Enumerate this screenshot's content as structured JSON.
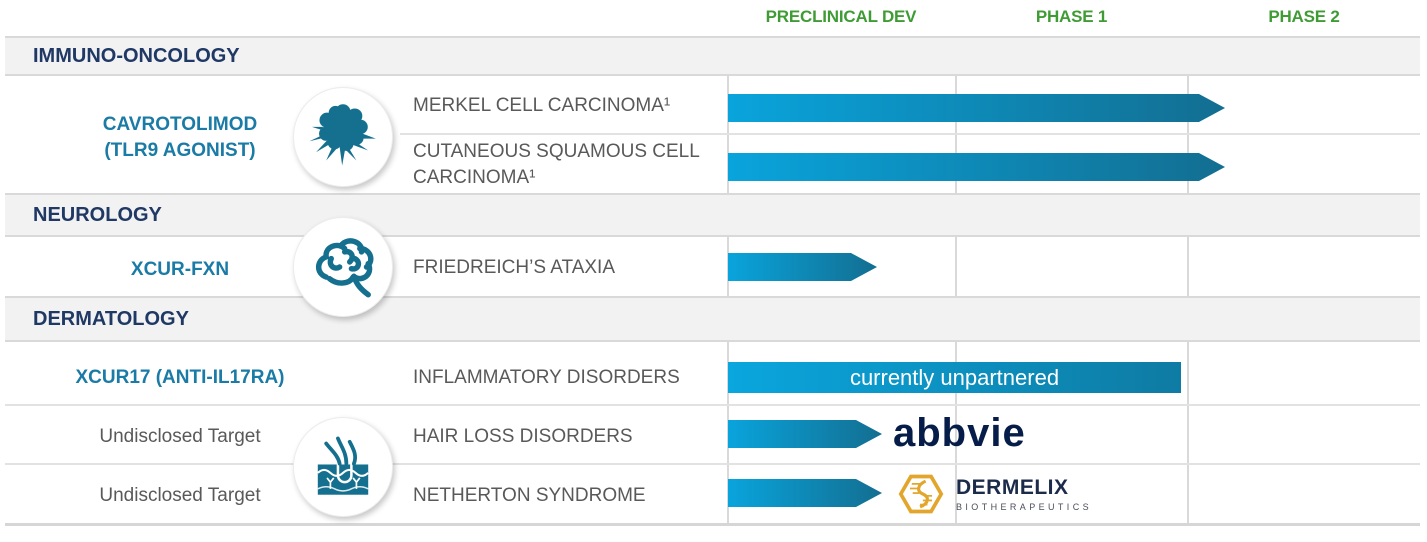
{
  "header": {
    "columns": [
      "PRECLINICAL DEV",
      "PHASE 1",
      "PHASE 2"
    ]
  },
  "sections": [
    {
      "title": "IMMUNO-ONCOLOGY"
    },
    {
      "title": "NEUROLOGY"
    },
    {
      "title": "DERMATOLOGY"
    }
  ],
  "programs": [
    {
      "name": "CAVROTOLIMOD",
      "name2": "(TLR9 AGONIST)",
      "icon": "tumor-cell-icon"
    },
    {
      "name": "XCUR-FXN",
      "icon": "brain-icon"
    },
    {
      "name": "XCUR17 (ANTI-IL17RA)"
    },
    {
      "name": "Undisclosed Target",
      "icon": "skin-hair-follicle-icon"
    },
    {
      "name": "Undisclosed Target"
    }
  ],
  "rows": [
    {
      "indication": "MERKEL CELL CARCINOMA¹"
    },
    {
      "indication": "CUTANEOUS SQUAMOUS CELL CARCINOMA¹"
    },
    {
      "indication": "FRIEDREICH’S ATAXIA"
    },
    {
      "indication": "INFLAMMATORY DISORDERS"
    },
    {
      "indication": "HAIR LOSS DISORDERS"
    },
    {
      "indication": "NETHERTON SYNDROME"
    }
  ],
  "partners": {
    "abbvie_label": "abbvie",
    "dermelix_name": "DERMELIX",
    "dermelix_sub": "BIOTHERAPEUTICS"
  },
  "chart_data": {
    "type": "bar",
    "subtype": "pipeline-gantt",
    "phases": [
      "PRECLINICAL DEV",
      "PHASE 1",
      "PHASE 2"
    ],
    "phase_axis_note": "extent_phases: 0=start Preclinical Dev, 1=start Phase 1, 2=start Phase 2, 3=end Phase 2",
    "legend_position": "none",
    "grid": "vertical-only",
    "bars": [
      {
        "section": "IMMUNO-ONCOLOGY",
        "program": "CAVROTOLIMOD (TLR9 AGONIST)",
        "indication": "MERKEL CELL CARCINOMA¹",
        "style": "arrow",
        "extent_phases": 2.16,
        "label": "",
        "partner": ""
      },
      {
        "section": "IMMUNO-ONCOLOGY",
        "program": "CAVROTOLIMOD (TLR9 AGONIST)",
        "indication": "CUTANEOUS SQUAMOUS CELL CARCINOMA¹",
        "style": "arrow",
        "extent_phases": 2.16,
        "label": "",
        "partner": ""
      },
      {
        "section": "NEUROLOGY",
        "program": "XCUR-FXN",
        "indication": "FRIEDREICH’S ATAXIA",
        "style": "arrow",
        "extent_phases": 0.66,
        "label": "",
        "partner": ""
      },
      {
        "section": "DERMATOLOGY",
        "program": "XCUR17 (ANTI-IL17RA)",
        "indication": "INFLAMMATORY DISORDERS",
        "style": "bar",
        "extent_phases": 1.97,
        "label": "currently unpartnered",
        "partner": ""
      },
      {
        "section": "DERMATOLOGY",
        "program": "Undisclosed Target",
        "indication": "HAIR LOSS DISORDERS",
        "style": "arrow",
        "extent_phases": 0.68,
        "label": "",
        "partner": "abbvie"
      },
      {
        "section": "DERMATOLOGY",
        "program": "Undisclosed Target",
        "indication": "NETHERTON SYNDROME",
        "style": "arrow",
        "extent_phases": 0.68,
        "label": "",
        "partner": "DERMELIX BIOTHERAPEUTICS"
      }
    ]
  },
  "colors": {
    "phase_header_green": "#3f9c35",
    "section_navy": "#1f3864",
    "program_teal": "#1a7ba6",
    "body_gray": "#595959",
    "bar_gradient_start": "#09a4dc",
    "bar_gradient_end": "#136e91",
    "icon_teal": "#15708f",
    "abbvie_navy": "#071d49",
    "dermelix_gold": "#e2a62c"
  }
}
